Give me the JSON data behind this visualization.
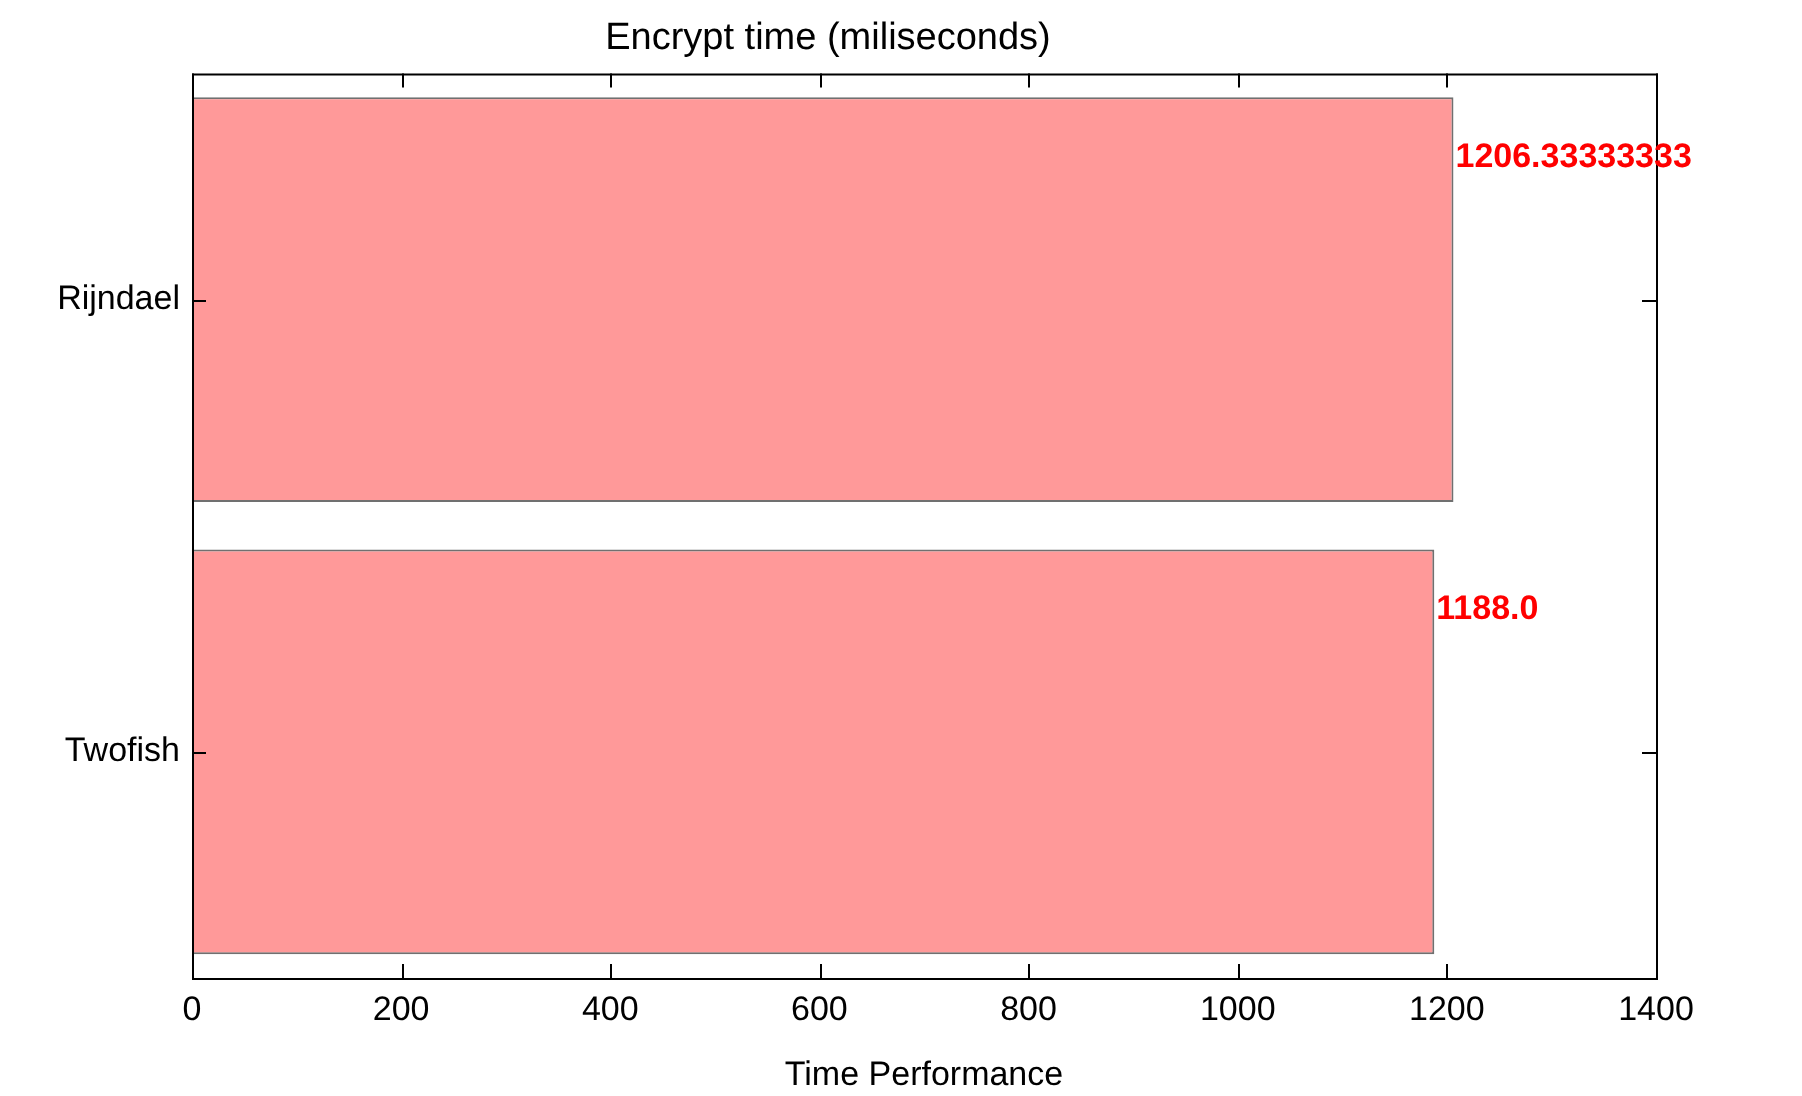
{
  "chart_data": {
    "type": "bar",
    "orientation": "horizontal",
    "title": "Encrypt time (miliseconds)",
    "xlabel": "Time Performance",
    "categories": [
      "Rijndael",
      "Twofish"
    ],
    "values": [
      1206.33333333,
      1188.0
    ],
    "value_labels": [
      "1206.33333333",
      "1188.0"
    ],
    "color": "#ff9999",
    "xlim": [
      0,
      1400
    ],
    "xticks": [
      0,
      200,
      400,
      600,
      800,
      1000,
      1200,
      1400
    ]
  }
}
